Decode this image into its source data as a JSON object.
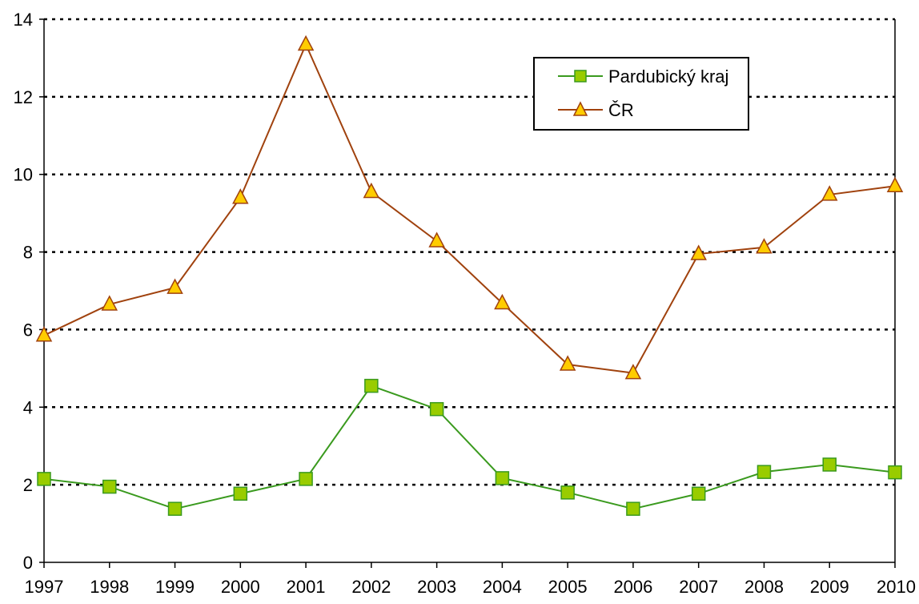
{
  "chart_data": {
    "type": "line",
    "x": [
      "1997",
      "1998",
      "1999",
      "2000",
      "2001",
      "2002",
      "2003",
      "2004",
      "2005",
      "2006",
      "2007",
      "2008",
      "2009",
      "2010"
    ],
    "ylim": [
      0,
      14
    ],
    "yticks": [
      0,
      2,
      4,
      6,
      8,
      10,
      12,
      14
    ],
    "grid": "horizontal-dotted",
    "legend_position": "top-right",
    "series": [
      {
        "name": "Pardubický kraj",
        "marker": "square",
        "line_color": "#3a9a1e",
        "marker_fill": "#99cc00",
        "values": [
          2.15,
          1.95,
          1.38,
          1.77,
          2.15,
          4.55,
          3.95,
          2.17,
          1.8,
          1.38,
          1.77,
          2.33,
          2.52,
          2.32
        ]
      },
      {
        "name": "ČR",
        "marker": "triangle",
        "line_color": "#a0420e",
        "marker_fill": "#ffcc00",
        "values": [
          5.85,
          6.65,
          7.08,
          9.4,
          13.35,
          9.55,
          8.28,
          6.68,
          5.1,
          4.88,
          7.95,
          8.12,
          9.48,
          9.7
        ]
      }
    ]
  }
}
